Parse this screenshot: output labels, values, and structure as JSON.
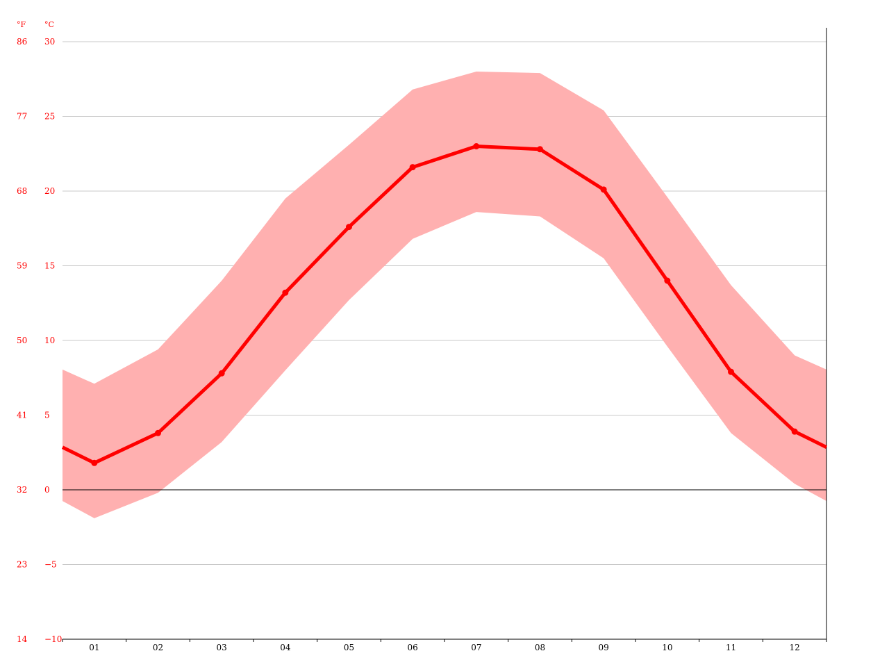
{
  "chart_data": {
    "type": "area",
    "title": "",
    "xlabel": "",
    "ylabel": "",
    "categories": [
      "01",
      "02",
      "03",
      "04",
      "05",
      "06",
      "07",
      "08",
      "09",
      "10",
      "11",
      "12"
    ],
    "ylim": [
      -10,
      30
    ],
    "y_ticks_c": [
      "30",
      "25",
      "20",
      "15",
      "10",
      "5",
      "0",
      "−5",
      "−10"
    ],
    "y_ticks_f": [
      "86",
      "77",
      "68",
      "59",
      "50",
      "41",
      "32",
      "23",
      "14"
    ],
    "unit_f": "°F",
    "unit_c": "°C",
    "grid": true,
    "series": [
      {
        "values": [
          1.8,
          3.8,
          7.8,
          13.2,
          17.6,
          21.6,
          23.0,
          22.8,
          20.1,
          14.0,
          7.9,
          3.9
        ]
      },
      {
        "values": [
          7.1,
          9.4,
          14.0,
          19.5,
          23.1,
          26.8,
          28.0,
          27.9,
          25.4,
          19.6,
          13.7,
          9.0
        ]
      },
      {
        "values": [
          -1.9,
          -0.2,
          3.2,
          8.0,
          12.7,
          16.8,
          18.6,
          18.3,
          15.5,
          9.6,
          3.8,
          0.4
        ]
      }
    ],
    "colors": {
      "line": "#ff0000",
      "band": "#ffb0b0",
      "tick_text": "#ff0000",
      "month_text": "#000000",
      "grid": "#c8c8c8",
      "zero_line": "#000000",
      "axis": "#000000"
    }
  }
}
